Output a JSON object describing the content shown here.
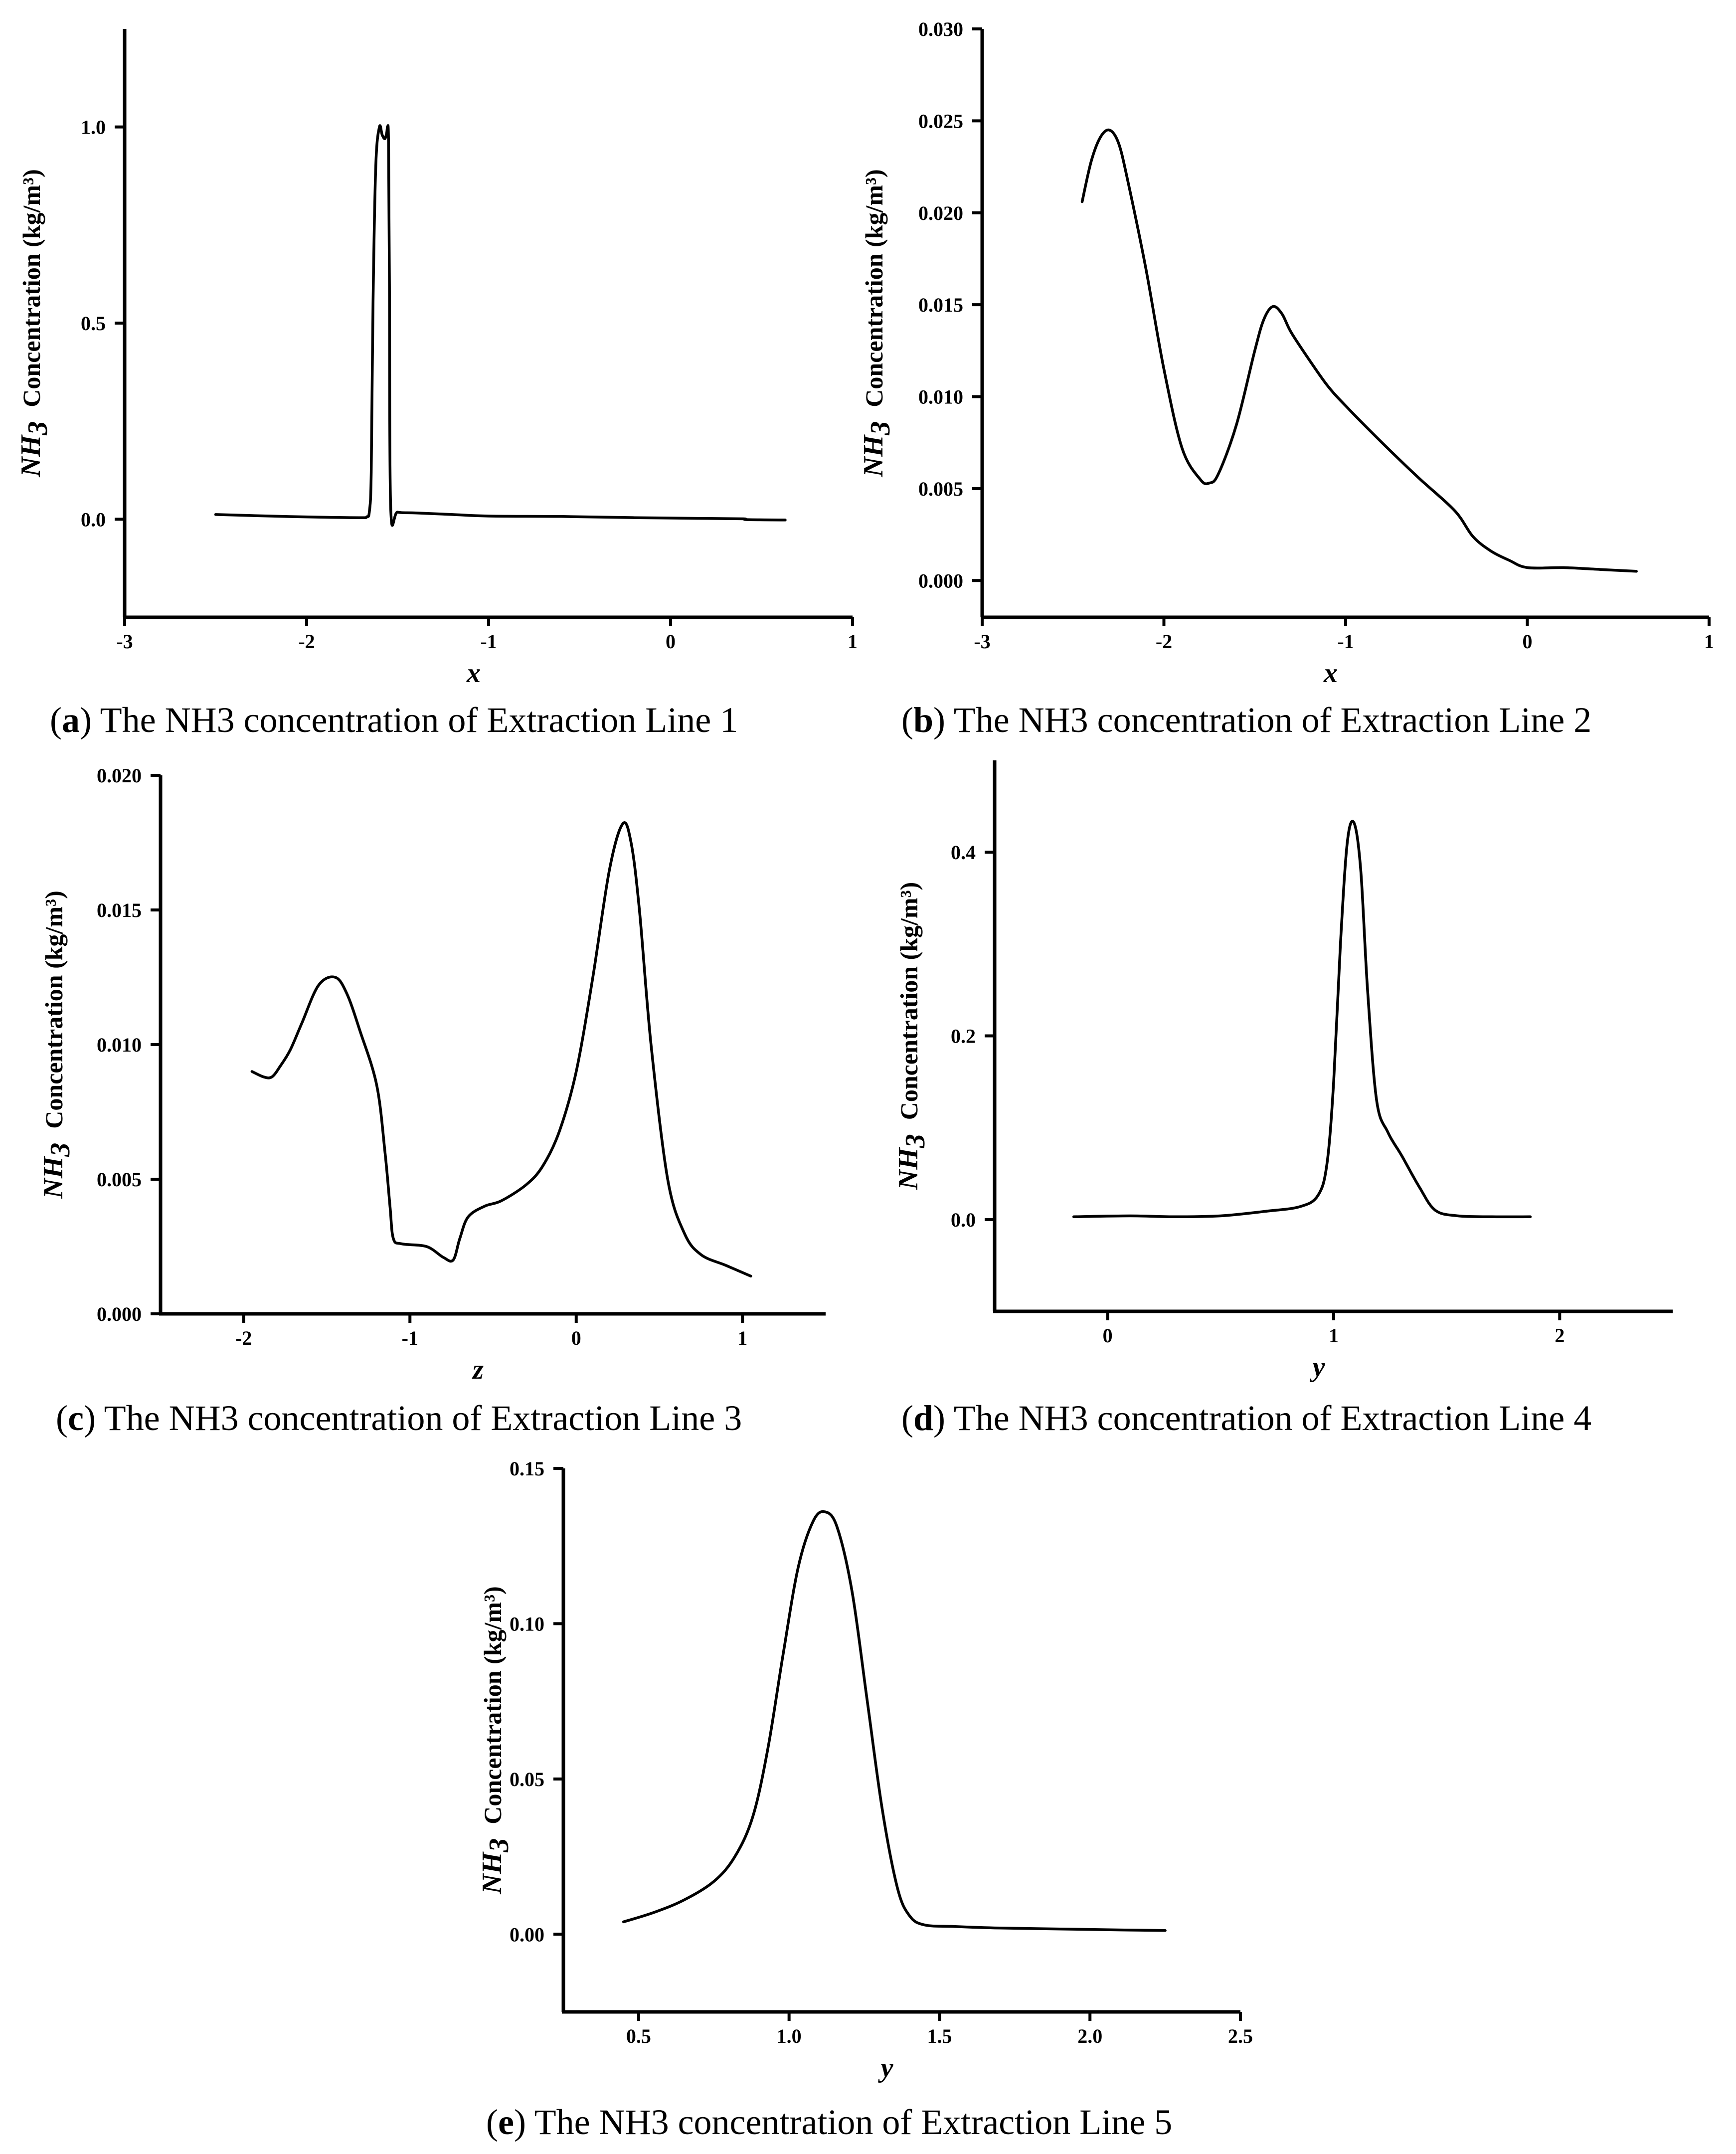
{
  "chart_data": [
    {
      "id": "a",
      "type": "line",
      "caption_letter": "a",
      "caption_text": "The NH3 concentration of Extraction Line 1",
      "xlabel": "x",
      "ylabel_species": "NH",
      "ylabel_sub": "3",
      "ylabel_text": "Concentration (kg/m³)",
      "xlim": [
        -3,
        1
      ],
      "ylim": [
        -0.25,
        1.25
      ],
      "xticks": [
        -3,
        -2,
        -1,
        0,
        1
      ],
      "xtick_labels": [
        "-3",
        "-2",
        "-1",
        "0",
        "1"
      ],
      "yticks": [
        0,
        0.5,
        1.0
      ],
      "ytick_labels": [
        "0.0",
        "0.5",
        "1.0"
      ],
      "series": [
        {
          "name": "Extraction Line 1",
          "x": [
            -2.5,
            -2.2,
            -1.9,
            -1.7,
            -1.67,
            -1.655,
            -1.645,
            -1.635,
            -1.62,
            -1.6,
            -1.585,
            -1.57,
            -1.56,
            -1.555,
            -1.55,
            -1.545,
            -1.538,
            -1.5,
            -1.4,
            -1.2,
            -1.0,
            -0.6,
            -0.2,
            0.2,
            0.4,
            0.42,
            0.63
          ],
          "y": [
            0.012,
            0.008,
            0.005,
            0.004,
            0.006,
            0.02,
            0.12,
            0.55,
            0.9,
            1.0,
            0.98,
            0.97,
            0.985,
            1.0,
            0.96,
            0.6,
            0.03,
            0.018,
            0.016,
            0.012,
            0.008,
            0.007,
            0.004,
            0.002,
            0.001,
            -0.001,
            -0.002
          ]
        }
      ]
    },
    {
      "id": "b",
      "type": "line",
      "caption_letter": "b",
      "caption_text": "The NH3 concentration of Extraction Line 2",
      "xlabel": "x",
      "ylabel_species": "NH",
      "ylabel_sub": "3",
      "ylabel_text": "Concentration (kg/m³)",
      "xlim": [
        -3,
        1
      ],
      "ylim": [
        -0.002,
        0.03
      ],
      "xticks": [
        -3,
        -2,
        -1,
        0,
        1
      ],
      "xtick_labels": [
        "-3",
        "-2",
        "-1",
        "0",
        "1"
      ],
      "yticks": [
        0,
        0.005,
        0.01,
        0.015,
        0.02,
        0.025,
        0.03
      ],
      "ytick_labels": [
        "0.000",
        "0.005",
        "0.010",
        "0.015",
        "0.020",
        "0.025",
        "0.030"
      ],
      "series": [
        {
          "name": "Extraction Line 2",
          "x": [
            -2.45,
            -2.4,
            -2.35,
            -2.3,
            -2.25,
            -2.2,
            -2.1,
            -2.0,
            -1.9,
            -1.8,
            -1.75,
            -1.7,
            -1.6,
            -1.5,
            -1.45,
            -1.4,
            -1.35,
            -1.3,
            -1.2,
            -1.1,
            -1.0,
            -0.8,
            -0.6,
            -0.4,
            -0.3,
            -0.2,
            -0.1,
            0.0,
            0.2,
            0.4,
            0.6
          ],
          "y": [
            0.0206,
            0.0228,
            0.0241,
            0.0245,
            0.0238,
            0.0218,
            0.017,
            0.0115,
            0.0072,
            0.0055,
            0.0053,
            0.0058,
            0.0085,
            0.0125,
            0.0142,
            0.0149,
            0.0145,
            0.0135,
            0.012,
            0.0106,
            0.0095,
            0.0075,
            0.0056,
            0.0038,
            0.0024,
            0.0016,
            0.0011,
            0.0007,
            0.0007,
            0.0006,
            0.0005
          ]
        }
      ]
    },
    {
      "id": "c",
      "type": "line",
      "caption_letter": "c",
      "caption_text": "The NH3 concentration of Extraction Line 3",
      "xlabel": "z",
      "ylabel_species": "NH",
      "ylabel_sub": "3",
      "ylabel_text": "Concentration (kg/m³)",
      "xlim": [
        -2.5,
        1.5
      ],
      "ylim": [
        0,
        0.02
      ],
      "xticks": [
        -2,
        -1,
        0,
        1
      ],
      "xtick_labels": [
        "-2",
        "-1",
        "0",
        "1"
      ],
      "yticks": [
        0,
        0.005,
        0.01,
        0.015,
        0.02
      ],
      "ytick_labels": [
        "0.000",
        "0.005",
        "0.010",
        "0.015",
        "0.020"
      ],
      "series": [
        {
          "name": "Extraction Line 3",
          "x": [
            -1.95,
            -1.88,
            -1.83,
            -1.78,
            -1.72,
            -1.65,
            -1.55,
            -1.45,
            -1.38,
            -1.3,
            -1.2,
            -1.15,
            -1.12,
            -1.1,
            -1.05,
            -0.9,
            -0.8,
            -0.74,
            -0.7,
            -0.65,
            -0.55,
            -0.45,
            -0.3,
            -0.2,
            -0.1,
            0.0,
            0.1,
            0.2,
            0.28,
            0.33,
            0.38,
            0.45,
            0.55,
            0.65,
            0.75,
            0.9,
            1.05
          ],
          "y": [
            0.009,
            0.0088,
            0.0088,
            0.0092,
            0.0098,
            0.0108,
            0.0122,
            0.0125,
            0.0119,
            0.0105,
            0.0085,
            0.006,
            0.004,
            0.0028,
            0.0026,
            0.0025,
            0.0021,
            0.002,
            0.0028,
            0.0036,
            0.004,
            0.0042,
            0.0048,
            0.0055,
            0.0068,
            0.009,
            0.0125,
            0.0165,
            0.0182,
            0.0175,
            0.015,
            0.01,
            0.005,
            0.003,
            0.0022,
            0.0018,
            0.0014
          ]
        }
      ]
    },
    {
      "id": "d",
      "type": "line",
      "caption_letter": "d",
      "caption_text": "The NH3 concentration of Extraction Line 4",
      "xlabel": "y",
      "ylabel_species": "NH",
      "ylabel_sub": "3",
      "ylabel_text": "Concentration (kg/m³)",
      "xlim": [
        -0.5,
        2.5
      ],
      "ylim": [
        -0.1,
        0.5
      ],
      "xticks": [
        0,
        1,
        2
      ],
      "xtick_labels": [
        "0",
        "1",
        "2"
      ],
      "yticks": [
        0,
        0.2,
        0.4
      ],
      "ytick_labels": [
        "0.0",
        "0.2",
        "0.4"
      ],
      "series": [
        {
          "name": "Extraction Line 4",
          "x": [
            -0.15,
            0.1,
            0.3,
            0.5,
            0.7,
            0.85,
            0.93,
            0.97,
            1.0,
            1.03,
            1.06,
            1.09,
            1.12,
            1.15,
            1.19,
            1.24,
            1.3,
            1.38,
            1.45,
            1.55,
            1.7,
            1.87
          ],
          "y": [
            0.003,
            0.004,
            0.003,
            0.004,
            0.009,
            0.014,
            0.026,
            0.06,
            0.15,
            0.3,
            0.41,
            0.432,
            0.38,
            0.25,
            0.13,
            0.095,
            0.07,
            0.035,
            0.01,
            0.004,
            0.003,
            0.003
          ]
        }
      ]
    },
    {
      "id": "e",
      "type": "line",
      "caption_letter": "e",
      "caption_text": "The NH3 concentration of Extraction Line 5",
      "xlabel": "y",
      "ylabel_species": "NH",
      "ylabel_sub": "3",
      "ylabel_text": "Concentration (kg/m³)",
      "xlim": [
        0.25,
        2.5
      ],
      "ylim": [
        -0.025,
        0.15
      ],
      "xticks": [
        0.5,
        1.0,
        1.5,
        2.0,
        2.5
      ],
      "xtick_labels": [
        "0.5",
        "1.0",
        "1.5",
        "2.0",
        "2.5"
      ],
      "yticks": [
        0,
        0.05,
        0.1,
        0.15
      ],
      "ytick_labels": [
        "0.00",
        "0.05",
        "0.10",
        "0.15"
      ],
      "series": [
        {
          "name": "Extraction Line 5",
          "x": [
            0.45,
            0.55,
            0.65,
            0.75,
            0.82,
            0.88,
            0.93,
            0.98,
            1.03,
            1.08,
            1.12,
            1.16,
            1.21,
            1.26,
            1.31,
            1.36,
            1.4,
            1.45,
            1.55,
            1.7,
            1.9,
            2.1,
            2.25
          ],
          "y": [
            0.004,
            0.007,
            0.011,
            0.017,
            0.025,
            0.038,
            0.06,
            0.09,
            0.118,
            0.133,
            0.136,
            0.131,
            0.11,
            0.075,
            0.04,
            0.015,
            0.006,
            0.003,
            0.0025,
            0.002,
            0.0017,
            0.0014,
            0.0012
          ]
        }
      ]
    }
  ]
}
